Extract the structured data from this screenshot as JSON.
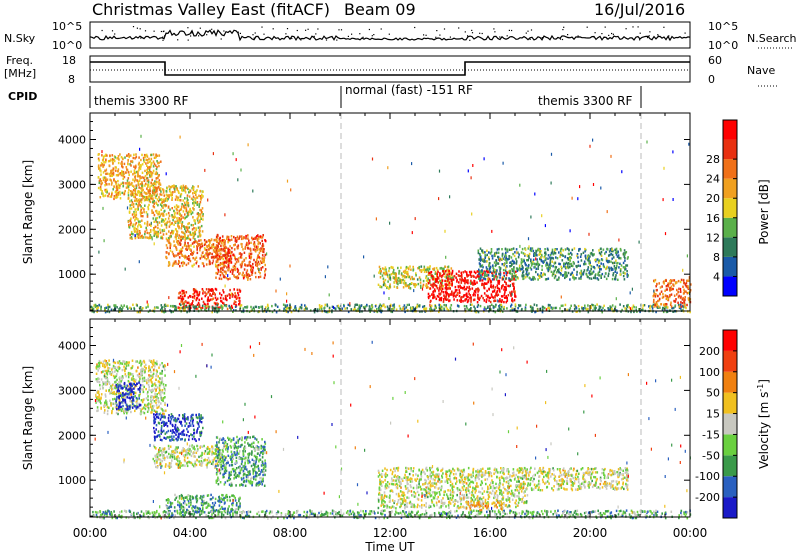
{
  "title": {
    "station": "Christmas Valley East (fitACF)",
    "beam": "Beam 09",
    "date": "16/Jul/2016"
  },
  "summary": {
    "left_labels": {
      "nsky": "N.Sky",
      "freq": "Freq.",
      "freq_unit": "[MHz]",
      "cpid": "CPID"
    },
    "right_labels": {
      "nsearch": "N.Search",
      "nave": "Nave"
    },
    "nsky_ticks": [
      "10^5",
      "10^0"
    ],
    "nsearch_ticks": [
      "10^5",
      "10^0"
    ],
    "freq_ticks": [
      "18",
      "8"
    ],
    "nave_ticks": [
      "60",
      "0"
    ],
    "cpid_segments": [
      {
        "label": "themis 3300 RF",
        "start_hour": 0,
        "end_hour": 10
      },
      {
        "label": "normal (fast) -151 RF",
        "start_hour": 10,
        "end_hour": 22
      },
      {
        "label": "themis 3300 RF",
        "start_hour": 15,
        "end_hour": 22
      }
    ]
  },
  "chart_data": [
    {
      "type": "heatmap",
      "name": "power",
      "ylabel": "Slant Range [km]",
      "y_ticks": [
        "1000",
        "2000",
        "3000",
        "4000"
      ],
      "ylim": [
        180,
        4590
      ],
      "xlim_hours": [
        0,
        24
      ],
      "colorbar": {
        "label": "Power [dB]",
        "ticks": [
          "4",
          "8",
          "12",
          "16",
          "20",
          "24",
          "28"
        ],
        "colors": [
          "#0000ff",
          "#1a5aa8",
          "#2e7a5a",
          "#5ab04a",
          "#e8d020",
          "#f0a020",
          "#f07018",
          "#e83010",
          "#ff0000"
        ]
      },
      "regions": [
        {
          "x0": 0.3,
          "x1": 2.8,
          "y0": 2700,
          "y1": 3700,
          "level": 0.6
        },
        {
          "x0": 1.5,
          "x1": 4.5,
          "y0": 1800,
          "y1": 3000,
          "level": 0.55
        },
        {
          "x0": 3.0,
          "x1": 5.5,
          "y0": 1200,
          "y1": 1800,
          "level": 0.7
        },
        {
          "x0": 5.0,
          "x1": 7.0,
          "y0": 900,
          "y1": 1900,
          "level": 0.75
        },
        {
          "x0": 3.5,
          "x1": 6.0,
          "y0": 250,
          "y1": 700,
          "level": 0.9
        },
        {
          "x0": 11.5,
          "x1": 14.5,
          "y0": 700,
          "y1": 1200,
          "level": 0.5
        },
        {
          "x0": 13.5,
          "x1": 17.0,
          "y0": 400,
          "y1": 1100,
          "level": 0.95
        },
        {
          "x0": 15.5,
          "x1": 21.5,
          "y0": 900,
          "y1": 1600,
          "level": 0.3
        },
        {
          "x0": 0.0,
          "x1": 24.0,
          "y0": 180,
          "y1": 350,
          "level": 0.35
        },
        {
          "x0": 22.5,
          "x1": 24.0,
          "y0": 300,
          "y1": 900,
          "level": 0.7
        }
      ]
    },
    {
      "type": "heatmap",
      "name": "velocity",
      "ylabel": "Slant Range [km]",
      "y_ticks": [
        "1000",
        "2000",
        "3000",
        "4000"
      ],
      "ylim": [
        180,
        4590
      ],
      "xlim_hours": [
        0,
        24
      ],
      "colorbar": {
        "label": "Velocity [m s",
        "label_sup": "-1",
        "label_end": "]",
        "ticks": [
          "200",
          "100",
          "50",
          "15",
          "-15",
          "-50",
          "-100",
          "-200"
        ],
        "colors": [
          "#1a1ac8",
          "#2a60c0",
          "#3a9a4a",
          "#6ad040",
          "#c8c8c0",
          "#f0c020",
          "#f08010",
          "#f04010",
          "#ff0000"
        ]
      },
      "regions": [
        {
          "x0": 0.2,
          "x1": 3.0,
          "y0": 2500,
          "y1": 3700,
          "level": 0.5
        },
        {
          "x0": 1.0,
          "x1": 2.0,
          "y0": 2600,
          "y1": 3200,
          "level": 0.05
        },
        {
          "x0": 2.5,
          "x1": 4.5,
          "y0": 1900,
          "y1": 2500,
          "level": 0.1
        },
        {
          "x0": 2.5,
          "x1": 5.5,
          "y0": 1300,
          "y1": 1800,
          "level": 0.5
        },
        {
          "x0": 5.0,
          "x1": 7.0,
          "y0": 900,
          "y1": 2000,
          "level": 0.3
        },
        {
          "x0": 3.0,
          "x1": 6.0,
          "y0": 300,
          "y1": 700,
          "level": 0.3
        },
        {
          "x0": 11.5,
          "x1": 17.5,
          "y0": 400,
          "y1": 1300,
          "level": 0.5
        },
        {
          "x0": 17.0,
          "x1": 21.5,
          "y0": 800,
          "y1": 1300,
          "level": 0.5
        },
        {
          "x0": 0.0,
          "x1": 24.0,
          "y0": 180,
          "y1": 350,
          "level": 0.35
        },
        {
          "x0": 15.0,
          "x1": 16.5,
          "y0": 350,
          "y1": 550,
          "level": 0.62
        }
      ]
    }
  ],
  "x_axis": {
    "label": "Time UT",
    "ticks": [
      "00:00",
      "04:00",
      "08:00",
      "12:00",
      "16:00",
      "20:00",
      "00:00"
    ]
  }
}
